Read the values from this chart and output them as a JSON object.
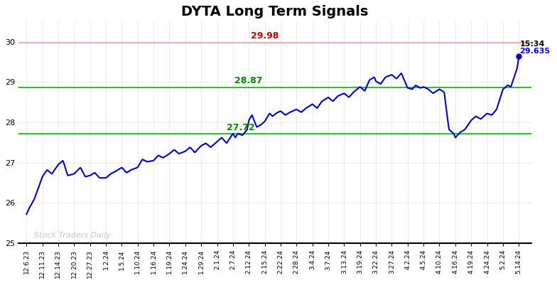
{
  "title": "DYTA Long Term Signals",
  "title_fontsize": 14,
  "ylim": [
    25,
    30.5
  ],
  "yticks": [
    25,
    26,
    27,
    28,
    29,
    30
  ],
  "background_color": "#ffffff",
  "line_color": "#0000cc",
  "line_width": 1.5,
  "red_line": 29.98,
  "green_line_upper": 28.87,
  "green_line_lower": 27.72,
  "red_line_color": "#ffaaaa",
  "green_line_color": "#00bb00",
  "red_label_color": "#cc0000",
  "green_label_color": "#008800",
  "annotation_time": "15:34",
  "annotation_price": "29.635",
  "watermark": "Stock Traders Daily",
  "xtick_labels": [
    "12.6.23",
    "12.11.23",
    "12.14.23",
    "12.20.23",
    "12.27.23",
    "1.2.24",
    "1.5.24",
    "1.10.24",
    "1.16.24",
    "1.19.24",
    "1.24.24",
    "1.29.24",
    "2.1.24",
    "2.7.24",
    "2.12.24",
    "2.15.24",
    "2.22.24",
    "2.28.24",
    "3.4.24",
    "3.7.24",
    "3.13.24",
    "3.19.24",
    "3.22.24",
    "3.27.24",
    "4.2.24",
    "4.5.24",
    "4.10.24",
    "4.16.24",
    "4.19.24",
    "4.24.24",
    "5.2.24",
    "5.14.24"
  ],
  "key_points": [
    [
      0,
      25.72
    ],
    [
      0.15,
      25.85
    ],
    [
      0.5,
      26.1
    ],
    [
      1.0,
      26.65
    ],
    [
      1.3,
      26.82
    ],
    [
      1.6,
      26.72
    ],
    [
      2.0,
      26.95
    ],
    [
      2.3,
      27.05
    ],
    [
      2.6,
      26.68
    ],
    [
      3.0,
      26.72
    ],
    [
      3.4,
      26.88
    ],
    [
      3.7,
      26.65
    ],
    [
      4.0,
      26.68
    ],
    [
      4.3,
      26.75
    ],
    [
      4.6,
      26.62
    ],
    [
      5.0,
      26.62
    ],
    [
      5.3,
      26.72
    ],
    [
      5.6,
      26.78
    ],
    [
      6.0,
      26.88
    ],
    [
      6.3,
      26.75
    ],
    [
      6.6,
      26.82
    ],
    [
      7.0,
      26.88
    ],
    [
      7.3,
      27.08
    ],
    [
      7.6,
      27.02
    ],
    [
      8.0,
      27.05
    ],
    [
      8.3,
      27.18
    ],
    [
      8.6,
      27.12
    ],
    [
      9.0,
      27.22
    ],
    [
      9.3,
      27.32
    ],
    [
      9.6,
      27.22
    ],
    [
      10.0,
      27.28
    ],
    [
      10.3,
      27.38
    ],
    [
      10.6,
      27.25
    ],
    [
      11.0,
      27.42
    ],
    [
      11.3,
      27.48
    ],
    [
      11.6,
      27.38
    ],
    [
      12.0,
      27.52
    ],
    [
      12.3,
      27.62
    ],
    [
      12.6,
      27.48
    ],
    [
      13.0,
      27.72
    ],
    [
      13.15,
      27.62
    ],
    [
      13.3,
      27.72
    ],
    [
      13.6,
      27.68
    ],
    [
      13.9,
      27.82
    ],
    [
      14.0,
      28.05
    ],
    [
      14.2,
      28.18
    ],
    [
      14.5,
      27.88
    ],
    [
      14.8,
      27.95
    ],
    [
      15.0,
      28.02
    ],
    [
      15.3,
      28.22
    ],
    [
      15.5,
      28.15
    ],
    [
      15.7,
      28.22
    ],
    [
      16.0,
      28.28
    ],
    [
      16.3,
      28.18
    ],
    [
      16.6,
      28.25
    ],
    [
      17.0,
      28.32
    ],
    [
      17.3,
      28.25
    ],
    [
      17.6,
      28.35
    ],
    [
      18.0,
      28.45
    ],
    [
      18.3,
      28.35
    ],
    [
      18.6,
      28.52
    ],
    [
      19.0,
      28.62
    ],
    [
      19.3,
      28.52
    ],
    [
      19.6,
      28.65
    ],
    [
      20.0,
      28.72
    ],
    [
      20.3,
      28.62
    ],
    [
      20.6,
      28.75
    ],
    [
      21.0,
      28.88
    ],
    [
      21.3,
      28.78
    ],
    [
      21.6,
      29.05
    ],
    [
      21.9,
      29.12
    ],
    [
      22.0,
      29.02
    ],
    [
      22.3,
      28.95
    ],
    [
      22.6,
      29.12
    ],
    [
      23.0,
      29.18
    ],
    [
      23.3,
      29.08
    ],
    [
      23.6,
      29.22
    ],
    [
      24.0,
      28.85
    ],
    [
      24.3,
      28.82
    ],
    [
      24.5,
      28.92
    ],
    [
      24.8,
      28.85
    ],
    [
      25.0,
      28.88
    ],
    [
      25.3,
      28.82
    ],
    [
      25.6,
      28.72
    ],
    [
      26.0,
      28.82
    ],
    [
      26.3,
      28.75
    ],
    [
      26.6,
      27.82
    ],
    [
      26.9,
      27.72
    ],
    [
      27.0,
      27.62
    ],
    [
      27.3,
      27.75
    ],
    [
      27.6,
      27.82
    ],
    [
      28.0,
      28.05
    ],
    [
      28.3,
      28.15
    ],
    [
      28.6,
      28.08
    ],
    [
      29.0,
      28.22
    ],
    [
      29.3,
      28.18
    ],
    [
      29.6,
      28.32
    ],
    [
      30.0,
      28.82
    ],
    [
      30.3,
      28.92
    ],
    [
      30.5,
      28.88
    ],
    [
      30.7,
      29.12
    ],
    [
      30.9,
      29.35
    ],
    [
      31.0,
      29.635
    ]
  ]
}
